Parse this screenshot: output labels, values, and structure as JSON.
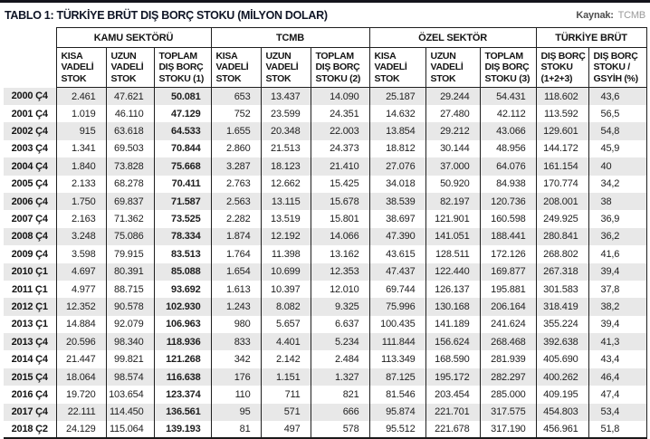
{
  "page": {
    "title": "TABLO 1: TÜRKİYE BRÜT DIŞ BORÇ STOKU (MİLYON DOLAR)",
    "source_label": "Kaynak:",
    "source_value": "TCMB"
  },
  "colors": {
    "top_bar": "#14141c",
    "row_stripe": "#e8e8e8",
    "border": "#1f1f1f",
    "title_text": "#0f1526"
  },
  "table": {
    "groups": [
      {
        "label": "KAMU SEKTÖRÜ",
        "span": 3
      },
      {
        "label": "TCMB",
        "span": 3
      },
      {
        "label": "ÖZEL SEKTÖR",
        "span": 3
      },
      {
        "label": "TÜRKİYE BRÜT",
        "span": 2
      }
    ],
    "subheaders": [
      "KISA VADELİ STOK",
      "UZUN VADELİ STOK",
      "TOPLAM DIŞ BORÇ STOKU (1)",
      "KISA VADELİ STOK",
      "UZUN VADELİ STOK",
      "TOPLAM DIŞ BORÇ STOKU (2)",
      "KISA VADELİ STOK",
      "UZUN VADELİ STOK",
      "TOPLAM DIŞ BORÇ STOKU (3)",
      "DIŞ BORÇ STOKU (1+2+3)",
      "DIŞ BORÇ STOKU / GSYİH (%)"
    ],
    "rows": [
      {
        "period": "2000 Ç4",
        "values": [
          "2.461",
          "47.621",
          "50.081",
          "653",
          "13.437",
          "14.090",
          "25.187",
          "29.244",
          "54.431",
          "118.602",
          "43,6"
        ]
      },
      {
        "period": "2001 Ç4",
        "values": [
          "1.019",
          "46.110",
          "47.129",
          "752",
          "23.599",
          "24.351",
          "14.632",
          "27.480",
          "42.112",
          "113.592",
          "56,5"
        ]
      },
      {
        "period": "2002 Ç4",
        "values": [
          "915",
          "63.618",
          "64.533",
          "1.655",
          "20.348",
          "22.003",
          "13.854",
          "29.212",
          "43.066",
          "129.601",
          "54,8"
        ]
      },
      {
        "period": "2003 Ç4",
        "values": [
          "1.341",
          "69.503",
          "70.844",
          "2.860",
          "21.513",
          "24.373",
          "18.812",
          "30.144",
          "48.956",
          "144.172",
          "45,9"
        ]
      },
      {
        "period": "2004 Ç4",
        "values": [
          "1.840",
          "73.828",
          "75.668",
          "3.287",
          "18.123",
          "21.410",
          "27.076",
          "37.000",
          "64.076",
          "161.154",
          "40"
        ]
      },
      {
        "period": "2005 Ç4",
        "values": [
          "2.133",
          "68.278",
          "70.411",
          "2.763",
          "12.662",
          "15.425",
          "34.018",
          "50.920",
          "84.938",
          "170.774",
          "34,2"
        ]
      },
      {
        "period": "2006 Ç4",
        "values": [
          "1.750",
          "69.837",
          "71.587",
          "2.563",
          "13.115",
          "15.678",
          "38.539",
          "82.197",
          "120.736",
          "208.001",
          "38"
        ]
      },
      {
        "period": "2007 Ç4",
        "values": [
          "2.163",
          "71.362",
          "73.525",
          "2.282",
          "13.519",
          "15.801",
          "38.697",
          "121.901",
          "160.598",
          "249.925",
          "36,9"
        ]
      },
      {
        "period": "2008 Ç4",
        "values": [
          "3.248",
          "75.086",
          "78.334",
          "1.874",
          "12.192",
          "14.066",
          "47.390",
          "141.051",
          "188.441",
          "280.841",
          "36,2"
        ]
      },
      {
        "period": "2009 Ç4",
        "values": [
          "3.598",
          "79.915",
          "83.513",
          "1.764",
          "11.398",
          "13.162",
          "43.615",
          "128.511",
          "172.126",
          "268.802",
          "41,6"
        ]
      },
      {
        "period": "2010 Ç1",
        "values": [
          "4.697",
          "80.391",
          "85.088",
          "1.654",
          "10.699",
          "12.353",
          "47.437",
          "122.440",
          "169.877",
          "267.318",
          "39,4"
        ]
      },
      {
        "period": "2011 Ç1",
        "values": [
          "4.977",
          "88.715",
          "93.692",
          "1.613",
          "10.397",
          "12.010",
          "69.744",
          "126.137",
          "195.881",
          "301.583",
          "37,8"
        ]
      },
      {
        "period": "2012 Ç1",
        "values": [
          "12.352",
          "90.578",
          "102.930",
          "1.243",
          "8.082",
          "9.325",
          "75.996",
          "130.168",
          "206.164",
          "318.419",
          "38,2"
        ]
      },
      {
        "period": "2013 Ç1",
        "values": [
          "14.884",
          "92.079",
          "106.963",
          "980",
          "5.657",
          "6.637",
          "100.435",
          "141.189",
          "241.624",
          "355.224",
          "39,4"
        ]
      },
      {
        "period": "2013 Ç4",
        "values": [
          "20.596",
          "98.340",
          "118.936",
          "833",
          "4.401",
          "5.234",
          "111.844",
          "156.624",
          "268.468",
          "392.638",
          "41,3"
        ]
      },
      {
        "period": "2014 Ç4",
        "values": [
          "21.447",
          "99.821",
          "121.268",
          "342",
          "2.142",
          "2.484",
          "113.349",
          "168.590",
          "281.939",
          "405.690",
          "43,4"
        ]
      },
      {
        "period": "2015 Ç4",
        "values": [
          "18.064",
          "98.574",
          "116.638",
          "176",
          "1.151",
          "1.327",
          "87.125",
          "195.172",
          "282.297",
          "400.262",
          "46,4"
        ]
      },
      {
        "period": "2016 Ç4",
        "values": [
          "19.720",
          "103.654",
          "123.374",
          "110",
          "711",
          "821",
          "81.546",
          "203.454",
          "285.000",
          "409.195",
          "47,4"
        ]
      },
      {
        "period": "2017 Ç4",
        "values": [
          "22.111",
          "114.450",
          "136.561",
          "95",
          "571",
          "666",
          "95.874",
          "221.701",
          "317.575",
          "454.803",
          "53,4"
        ]
      },
      {
        "period": "2018 Ç2",
        "values": [
          "24.129",
          "115.064",
          "139.193",
          "81",
          "497",
          "578",
          "95.512",
          "221.678",
          "317.190",
          "456.961",
          "51,8"
        ]
      }
    ]
  }
}
